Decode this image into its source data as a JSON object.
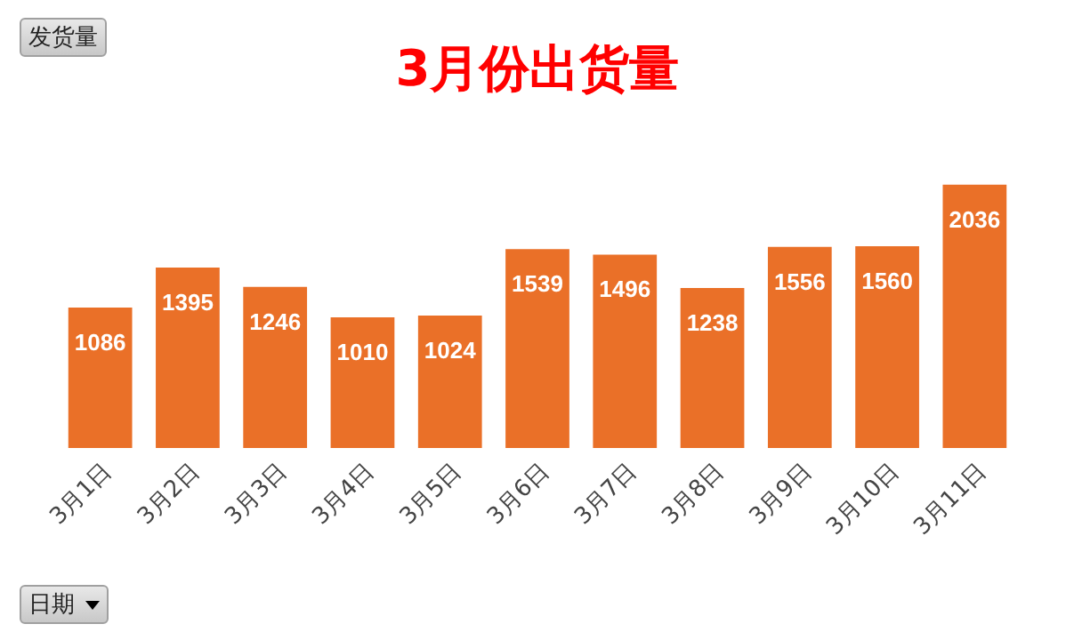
{
  "chart_data": {
    "type": "bar",
    "title": "3月份出货量",
    "annotations": [
      "发货量",
      "日期"
    ],
    "categories": [
      "3月1日",
      "3月2日",
      "3月3日",
      "3月4日",
      "3月5日",
      "3月6日",
      "3月7日",
      "3月8日",
      "3月9日",
      "3月10日",
      "3月11日"
    ],
    "values": [
      1086,
      1395,
      1246,
      1010,
      1024,
      1539,
      1496,
      1238,
      1556,
      1560,
      2036
    ],
    "color": "#ea7028",
    "data_labels": true,
    "grid": false
  }
}
